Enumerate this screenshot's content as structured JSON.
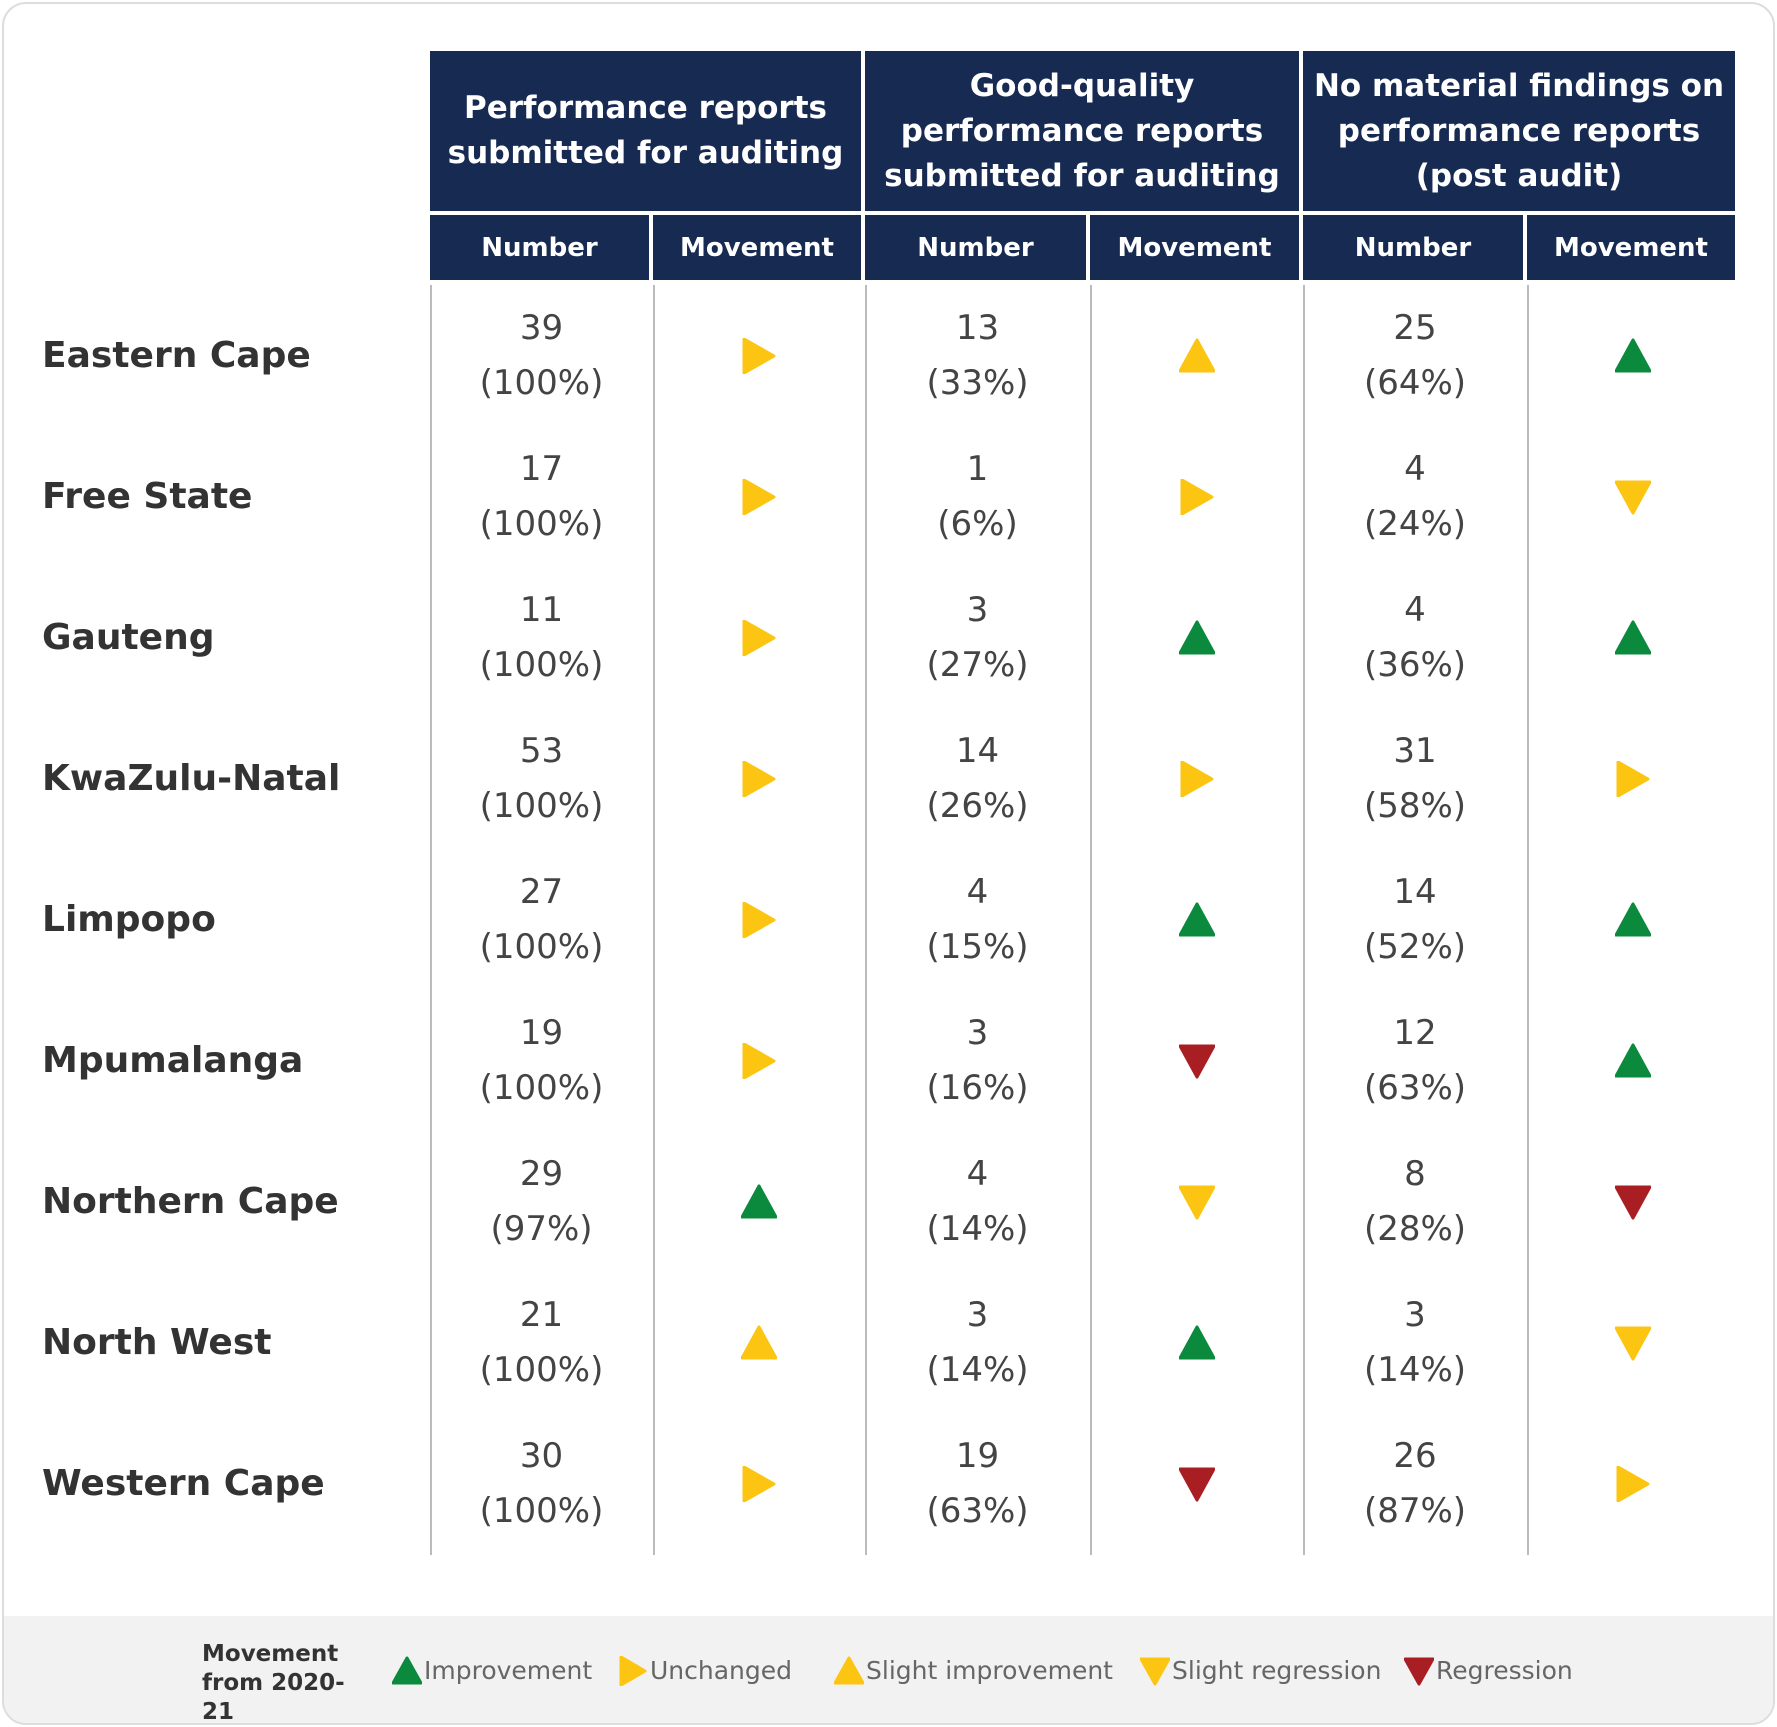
{
  "table": {
    "group_headers": [
      "Performance reports submitted for auditing",
      "Good-quality performance reports submitted for auditing",
      "No material findings on performance reports (post audit)"
    ],
    "sub_headers": [
      "Number",
      "Movement",
      "Number",
      "Movement",
      "Number",
      "Movement"
    ],
    "rows": [
      {
        "province": "Eastern Cape",
        "cells": [
          {
            "number": "39",
            "percent": "(100%)",
            "movement": "Unchanged"
          },
          {
            "number": "13",
            "percent": "(33%)",
            "movement": "Slight improvement"
          },
          {
            "number": "25",
            "percent": "(64%)",
            "movement": "Improvement"
          }
        ]
      },
      {
        "province": "Free State",
        "cells": [
          {
            "number": "17",
            "percent": "(100%)",
            "movement": "Unchanged"
          },
          {
            "number": "1",
            "percent": "(6%)",
            "movement": "Unchanged"
          },
          {
            "number": "4",
            "percent": "(24%)",
            "movement": "Slight regression"
          }
        ]
      },
      {
        "province": "Gauteng",
        "cells": [
          {
            "number": "11",
            "percent": "(100%)",
            "movement": "Unchanged"
          },
          {
            "number": "3",
            "percent": "(27%)",
            "movement": "Improvement"
          },
          {
            "number": "4",
            "percent": "(36%)",
            "movement": "Improvement"
          }
        ]
      },
      {
        "province": "KwaZulu-Natal",
        "cells": [
          {
            "number": "53",
            "percent": "(100%)",
            "movement": "Unchanged"
          },
          {
            "number": "14",
            "percent": "(26%)",
            "movement": "Unchanged"
          },
          {
            "number": "31",
            "percent": "(58%)",
            "movement": "Unchanged"
          }
        ]
      },
      {
        "province": "Limpopo",
        "cells": [
          {
            "number": "27",
            "percent": "(100%)",
            "movement": "Unchanged"
          },
          {
            "number": "4",
            "percent": "(15%)",
            "movement": "Improvement"
          },
          {
            "number": "14",
            "percent": "(52%)",
            "movement": "Improvement"
          }
        ]
      },
      {
        "province": "Mpumalanga",
        "cells": [
          {
            "number": "19",
            "percent": "(100%)",
            "movement": "Unchanged"
          },
          {
            "number": "3",
            "percent": "(16%)",
            "movement": "Regression"
          },
          {
            "number": "12",
            "percent": "(63%)",
            "movement": "Improvement"
          }
        ]
      },
      {
        "province": "Northern Cape",
        "cells": [
          {
            "number": "29",
            "percent": "(97%)",
            "movement": "Improvement"
          },
          {
            "number": "4",
            "percent": "(14%)",
            "movement": "Slight regression"
          },
          {
            "number": "8",
            "percent": "(28%)",
            "movement": "Regression"
          }
        ]
      },
      {
        "province": "North West",
        "cells": [
          {
            "number": "21",
            "percent": "(100%)",
            "movement": "Slight improvement"
          },
          {
            "number": "3",
            "percent": "(14%)",
            "movement": "Improvement"
          },
          {
            "number": "3",
            "percent": "(14%)",
            "movement": "Slight regression"
          }
        ]
      },
      {
        "province": "Western Cape",
        "cells": [
          {
            "number": "30",
            "percent": "(100%)",
            "movement": "Unchanged"
          },
          {
            "number": "19",
            "percent": "(63%)",
            "movement": "Regression"
          },
          {
            "number": "26",
            "percent": "(87%)",
            "movement": "Unchanged"
          }
        ]
      }
    ]
  },
  "legend": {
    "title": "Movement from 2020-21",
    "items": [
      {
        "label": "Improvement",
        "color": "#0b8a3e",
        "shape": "up"
      },
      {
        "label": "Unchanged",
        "color": "#fcc512",
        "shape": "right"
      },
      {
        "label": "Slight improvement",
        "color": "#fcc512",
        "shape": "up"
      },
      {
        "label": "Slight regression",
        "color": "#fcc512",
        "shape": "down"
      },
      {
        "label": "Regression",
        "color": "#a91e23",
        "shape": "down"
      }
    ]
  }
}
